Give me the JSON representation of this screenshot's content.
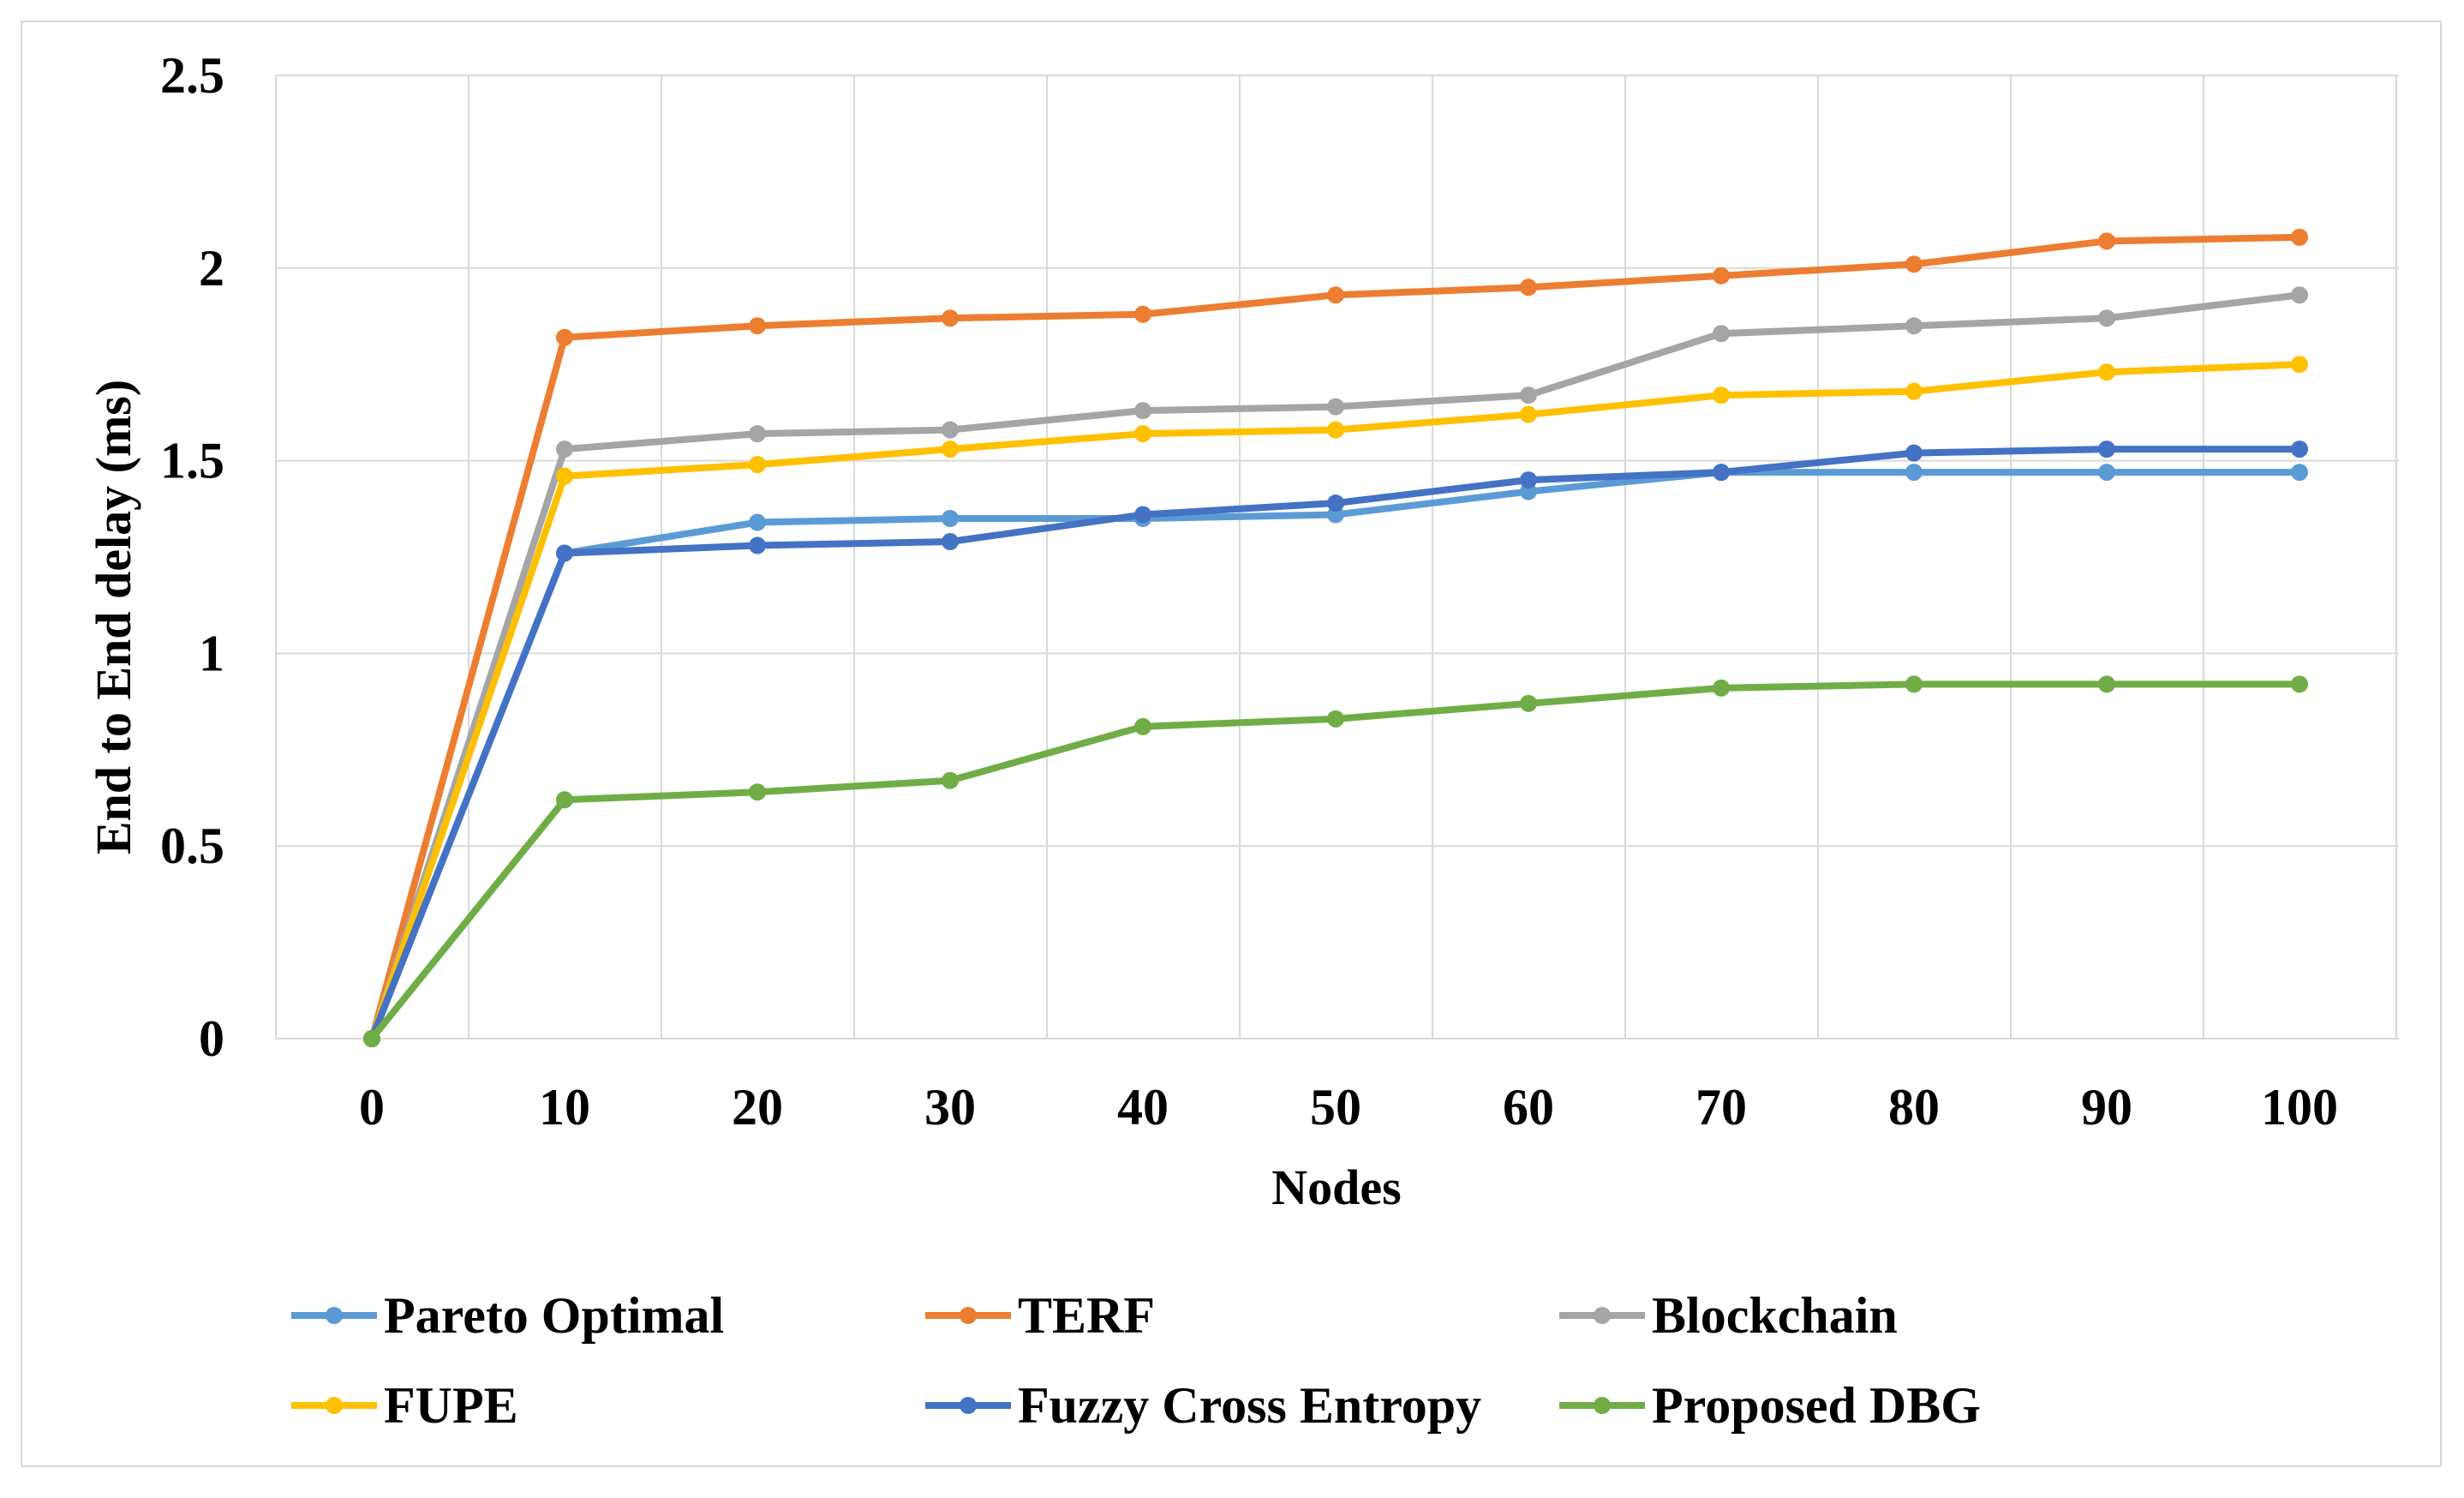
{
  "chart_data": {
    "type": "line",
    "title": "",
    "xlabel": "Nodes",
    "ylabel": "End to End delay (ms)",
    "x": [
      0,
      10,
      20,
      30,
      40,
      50,
      60,
      70,
      80,
      90,
      100
    ],
    "x_tick_labels": [
      "0",
      "10",
      "20",
      "30",
      "40",
      "50",
      "60",
      "70",
      "80",
      "90",
      "100"
    ],
    "y_tick_labels": [
      "0",
      "0.5",
      "1",
      "1.5",
      "2",
      "2.5"
    ],
    "ylim": [
      0,
      2.5
    ],
    "grid": true,
    "legend_position": "bottom",
    "series": [
      {
        "name": "Pareto Optimal",
        "color": "#5b9bd5",
        "values": [
          0,
          1.26,
          1.34,
          1.35,
          1.35,
          1.36,
          1.42,
          1.47,
          1.47,
          1.47,
          1.47
        ]
      },
      {
        "name": "TERF",
        "color": "#ed7d31",
        "values": [
          0,
          1.82,
          1.85,
          1.87,
          1.88,
          1.93,
          1.95,
          1.98,
          2.01,
          2.07,
          2.08
        ]
      },
      {
        "name": "Blockchain",
        "color": "#a5a5a5",
        "values": [
          0,
          1.53,
          1.57,
          1.58,
          1.63,
          1.64,
          1.67,
          1.83,
          1.85,
          1.87,
          1.93
        ]
      },
      {
        "name": "FUPE",
        "color": "#ffc000",
        "values": [
          0,
          1.46,
          1.49,
          1.53,
          1.57,
          1.58,
          1.62,
          1.67,
          1.68,
          1.73,
          1.75
        ]
      },
      {
        "name": "Fuzzy Cross Entropy",
        "color": "#4472c4",
        "values": [
          0,
          1.26,
          1.28,
          1.29,
          1.36,
          1.39,
          1.45,
          1.47,
          1.52,
          1.53,
          1.53
        ]
      },
      {
        "name": "Proposed DBG",
        "color": "#70ad47",
        "values": [
          0,
          0.62,
          0.64,
          0.67,
          0.81,
          0.83,
          0.87,
          0.91,
          0.92,
          0.92,
          0.92
        ]
      }
    ]
  }
}
